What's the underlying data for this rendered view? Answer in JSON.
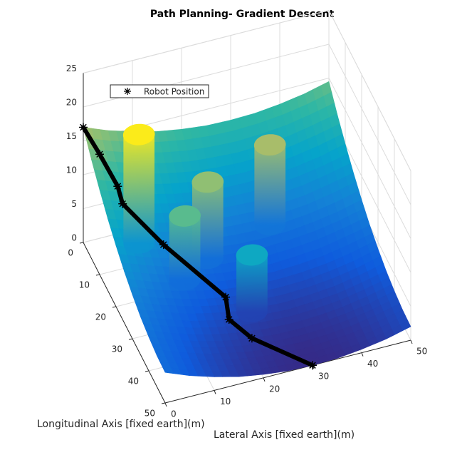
{
  "chart_data": {
    "type": "surface3d",
    "title": "Path Planning- Gradient Descent",
    "xlabel": "Lateral Axis [fixed earth](m)",
    "ylabel": "Longitudinal Axis [fixed earth](m)",
    "xlim": [
      0,
      50
    ],
    "ylim": [
      0,
      50
    ],
    "zlim": [
      0,
      25
    ],
    "xticks": [
      0,
      10,
      20,
      30,
      40,
      50
    ],
    "yticks": [
      0,
      10,
      20,
      30,
      40,
      50
    ],
    "zticks": [
      0,
      5,
      10,
      15,
      20,
      25
    ],
    "grid": true,
    "legend": "northwest",
    "colormap": [
      "#352a87",
      "#0f5cdd",
      "#1481d6",
      "#06a4ca",
      "#2eb7a4",
      "#87bf77",
      "#d1bb59",
      "#fec832",
      "#f9fb0e"
    ],
    "surface": {
      "x": [
        0,
        5,
        10,
        15,
        20,
        25,
        30,
        35,
        40,
        45,
        50
      ],
      "y": [
        0,
        5,
        10,
        15,
        20,
        25,
        30,
        35,
        40,
        45,
        50
      ],
      "z": [
        [
          17,
          15.6,
          14.5,
          13.6,
          13,
          12.6,
          12.5,
          12.6,
          13,
          13.6,
          14.5
        ],
        [
          14.6,
          13.3,
          12.1,
          11.3,
          10.6,
          10.3,
          10.1,
          10.3,
          10.6,
          11.3,
          12.1
        ],
        [
          12.5,
          11.1,
          10,
          9.1,
          8.5,
          8.1,
          8,
          8.1,
          8.5,
          9.1,
          10
        ],
        [
          10.6,
          9.3,
          8.1,
          7.3,
          6.6,
          6.3,
          6.1,
          6.3,
          6.6,
          7.3,
          8.1
        ],
        [
          9,
          7.6,
          6.5,
          5.6,
          5,
          4.6,
          4.5,
          4.6,
          5,
          5.6,
          6.5
        ],
        [
          7.6,
          6.3,
          5.1,
          4.3,
          3.6,
          3.3,
          3.1,
          3.3,
          3.6,
          4.3,
          5.1
        ],
        [
          6.5,
          5.1,
          4,
          3.1,
          2.5,
          2.1,
          2,
          2.1,
          2.5,
          3.1,
          4
        ],
        [
          5.6,
          4.3,
          3.1,
          2.3,
          1.6,
          1.3,
          1.1,
          1.3,
          1.6,
          2.3,
          3.1
        ],
        [
          5,
          3.6,
          2.5,
          1.6,
          1,
          0.6,
          0.5,
          0.6,
          1,
          1.6,
          2.5
        ],
        [
          4.6,
          3.3,
          2.1,
          1.3,
          0.6,
          0.3,
          0.1,
          0.3,
          0.6,
          1.3,
          2.1
        ],
        [
          4.5,
          3.1,
          2,
          1.1,
          0.5,
          0.1,
          0,
          0.1,
          0.5,
          1.1,
          2
        ]
      ]
    },
    "obstacles": [
      {
        "x": 5,
        "y": 19,
        "radius": 3,
        "height": 24
      },
      {
        "x": 18,
        "y": 22,
        "radius": 3,
        "height": 16
      },
      {
        "x": 12,
        "y": 26,
        "radius": 3,
        "height": 14
      },
      {
        "x": 32,
        "y": 18,
        "radius": 3,
        "height": 17
      },
      {
        "x": 23,
        "y": 34,
        "radius": 3,
        "height": 10
      }
    ],
    "series": [
      {
        "name": "Robot Position",
        "color": "#000000",
        "x": [
          0,
          2,
          4,
          4,
          10,
          19,
          18,
          21,
          30
        ],
        "y": [
          0,
          4,
          9,
          12,
          19,
          30,
          35,
          40,
          50
        ]
      }
    ]
  }
}
